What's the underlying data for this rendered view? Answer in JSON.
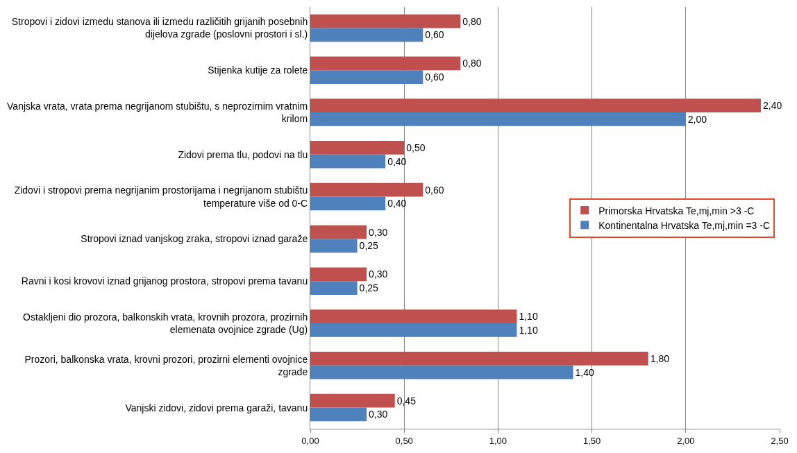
{
  "chart_data": {
    "type": "bar",
    "orientation": "horizontal",
    "categories": [
      "Stropovi i zidovi izmedu stanova ili izmedu različitih grijanih posebnih dijelova zgrade (poslovni prostori i sl.)",
      "Stijenka kutije za rolete",
      "Vanjska vrata, vrata prema negrijanom stubištu, s neprozirnim vratnim krilom",
      "Zidovi prema tlu, podovi na tlu",
      "Zidovi i stropovi prema negrijanim prostorijama i negrijanom stubištu temperature više od 0-C",
      "Stropovi iznad vanjskog zraka, stropovi iznad garaže",
      "Ravni i kosi krovovi iznad grijanog prostora, stropovi prema tavanu",
      "Ostakljeni dio prozora, balkonskih vrata, krovnih prozora, prozirnih elemenata ovojnice zgrade (Ug)",
      "Prozori, balkonska vrata, krovni prozori, prozirni elementi ovojnice zgrade",
      "Vanjski zidovi, zidovi prema garaži, tavanu"
    ],
    "series": [
      {
        "name": "Primorska Hrvatska Te,mj,min >3 -C",
        "color": "#c0504d",
        "values": [
          0.8,
          0.8,
          2.4,
          0.5,
          0.6,
          0.3,
          0.3,
          1.1,
          1.8,
          0.45
        ],
        "value_labels": [
          "0,80",
          "0,80",
          "2,40",
          "0,50",
          "0,60",
          "0,30",
          "0,30",
          "1,10",
          "1,80",
          "0,45"
        ]
      },
      {
        "name": "Kontinentalna Hrvatska Te,mj,min =3 -C",
        "color": "#4f81bd",
        "values": [
          0.6,
          0.6,
          2.0,
          0.4,
          0.4,
          0.25,
          0.25,
          1.1,
          1.4,
          0.3
        ],
        "value_labels": [
          "0,60",
          "0,60",
          "2,00",
          "0,40",
          "0,40",
          "0,25",
          "0,25",
          "1,10",
          "1,40",
          "0,30"
        ]
      }
    ],
    "xlim": [
      0,
      2.5
    ],
    "xticks": [
      {
        "value": 0,
        "label": "0,00"
      },
      {
        "value": 0.5,
        "label": "0,50"
      },
      {
        "value": 1,
        "label": "1,00"
      },
      {
        "value": 1.5,
        "label": "1,50"
      },
      {
        "value": 2,
        "label": "2,00"
      },
      {
        "value": 2.5,
        "label": "2,50"
      }
    ],
    "grid": "x",
    "legend": "right"
  }
}
